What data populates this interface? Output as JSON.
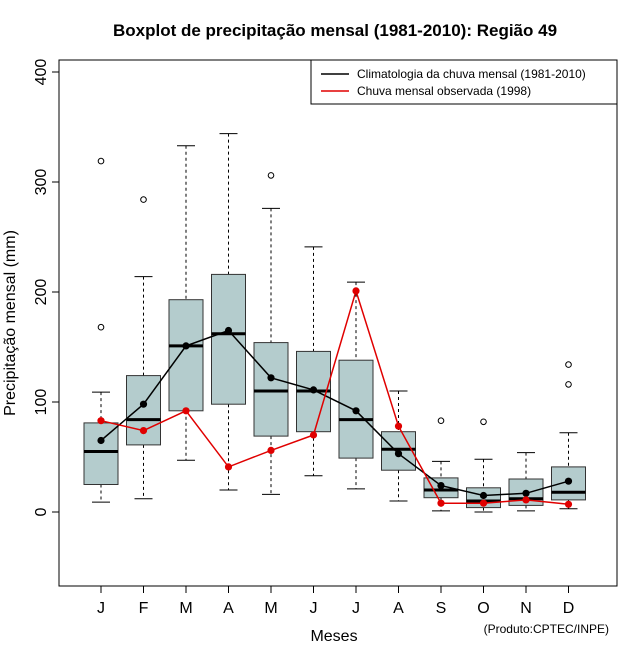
{
  "chart_data": {
    "type": "boxplot",
    "title": "Boxplot de precipitação mensal (1981-2010): Região 49",
    "xlabel": "Meses",
    "ylabel": "Precipitação mensal (mm)",
    "ylim": [
      -68,
      412
    ],
    "yticks": [
      0,
      100,
      200,
      300,
      400
    ],
    "categories": [
      "J",
      "F",
      "M",
      "A",
      "M",
      "J",
      "J",
      "A",
      "S",
      "O",
      "N",
      "D"
    ],
    "boxes": [
      {
        "whisker_low": 9,
        "q1": 25,
        "median": 55,
        "q3": 81,
        "whisker_high": 109,
        "outliers": [
          168,
          319
        ]
      },
      {
        "whisker_low": 12,
        "q1": 61,
        "median": 84,
        "q3": 124,
        "whisker_high": 214,
        "outliers": [
          284
        ]
      },
      {
        "whisker_low": 47,
        "q1": 92,
        "median": 151,
        "q3": 193,
        "whisker_high": 333,
        "outliers": []
      },
      {
        "whisker_low": 20,
        "q1": 98,
        "median": 162,
        "q3": 216,
        "whisker_high": 344,
        "outliers": []
      },
      {
        "whisker_low": 16,
        "q1": 69,
        "median": 110,
        "q3": 154,
        "whisker_high": 276,
        "outliers": [
          306
        ]
      },
      {
        "whisker_low": 33,
        "q1": 73,
        "median": 110,
        "q3": 146,
        "whisker_high": 241,
        "outliers": []
      },
      {
        "whisker_low": 21,
        "q1": 49,
        "median": 84,
        "q3": 138,
        "whisker_high": 209,
        "outliers": []
      },
      {
        "whisker_low": 10,
        "q1": 38,
        "median": 57,
        "q3": 73,
        "whisker_high": 110,
        "outliers": []
      },
      {
        "whisker_low": 1,
        "q1": 13,
        "median": 20,
        "q3": 31,
        "whisker_high": 46,
        "outliers": [
          83
        ]
      },
      {
        "whisker_low": 0,
        "q1": 4,
        "median": 10,
        "q3": 22,
        "whisker_high": 48,
        "outliers": [
          82
        ]
      },
      {
        "whisker_low": 1,
        "q1": 6,
        "median": 12,
        "q3": 30,
        "whisker_high": 54,
        "outliers": []
      },
      {
        "whisker_low": 3,
        "q1": 11,
        "median": 18,
        "q3": 41,
        "whisker_high": 72,
        "outliers": [
          116,
          134
        ]
      }
    ],
    "series": [
      {
        "name": "Climatologia da chuva mensal (1981-2010)",
        "color": "#000000",
        "values": [
          65,
          98,
          151,
          165,
          122,
          111,
          92,
          53,
          24,
          15,
          17,
          28
        ]
      },
      {
        "name": "Chuva mensal observada (1998)",
        "color": "#e00000",
        "values": [
          83,
          74,
          92,
          41,
          56,
          70,
          201,
          78,
          8,
          8,
          11,
          7
        ]
      }
    ],
    "box_fill": "#b4cccd",
    "legend_position": "top-right",
    "credit": "(Produto:CPTEC/INPE)"
  }
}
